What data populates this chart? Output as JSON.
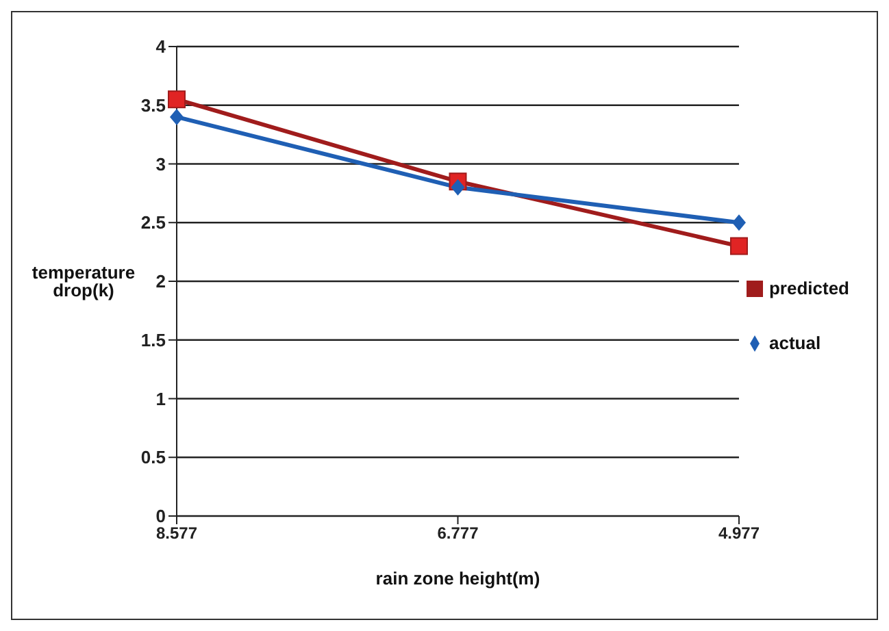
{
  "chart_data": {
    "type": "line",
    "xlabel": "rain zone height(m)",
    "ylabel": "temperature drop(k)",
    "categories": [
      "8.577",
      "6.777",
      "4.977"
    ],
    "series": [
      {
        "name": "predicted",
        "color": "#a01c1c",
        "marker": "square",
        "values": [
          3.55,
          2.85,
          2.3
        ]
      },
      {
        "name": "actual",
        "color": "#1f5fb4",
        "marker": "diamond",
        "values": [
          3.4,
          2.8,
          2.5
        ]
      }
    ],
    "ylim": [
      0,
      4
    ],
    "yticks": [
      0,
      0.5,
      1,
      1.5,
      2,
      2.5,
      3,
      3.5,
      4
    ],
    "grid": "y",
    "legend": "right"
  }
}
